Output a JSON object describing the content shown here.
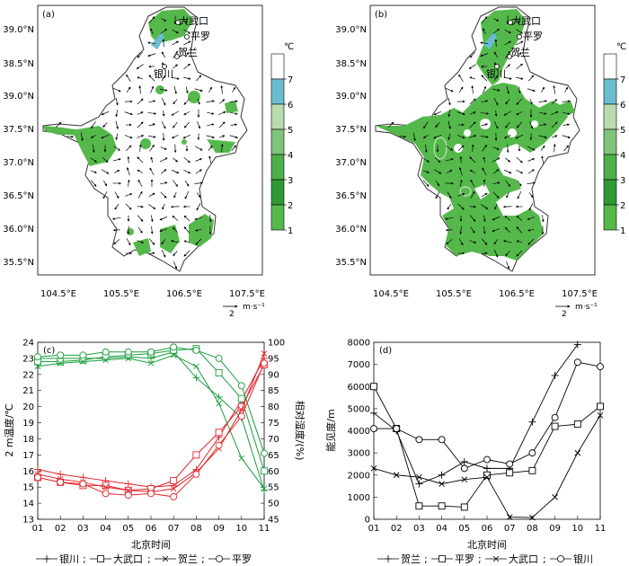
{
  "map_panels": [
    {
      "label": "(a)",
      "lat_ticks": [
        "39.0°N",
        "38.5°N",
        "39.0°N",
        "37.5°N",
        "37.0°N",
        "36.5°N",
        "36.0°N",
        "35.5°N"
      ],
      "lon_ticks": [
        "104.5°E",
        "105.5°E",
        "106.5°E",
        "107.5°E"
      ],
      "cities": [
        "大武口",
        "平罗",
        "贺兰",
        "银川"
      ],
      "colorbar": {
        "unit": "℃",
        "ticks": [
          "7",
          "6",
          "5",
          "4",
          "3",
          "2",
          "1"
        ],
        "colors": [
          "#ffffff",
          "#6bbcd0",
          "#b8dcb0",
          "#7fc47a",
          "#4db04a",
          "#2e9a35",
          "#55b84b"
        ]
      },
      "wind_legend": {
        "value": "2",
        "unit": "m·s⁻¹"
      }
    },
    {
      "label": "(b)",
      "lat_ticks": [
        "39.0°N",
        "38.5°N",
        "39.0°N",
        "37.5°N",
        "37.0°N",
        "36.5°N",
        "36.0°N",
        "35.5°N"
      ],
      "lon_ticks": [
        "104.5°E",
        "105.5°E",
        "106.5°E",
        "107.5°E"
      ],
      "cities": [
        "大武口",
        "平罗",
        "贺兰",
        "银川"
      ],
      "colorbar": {
        "unit": "℃",
        "ticks": [
          "7",
          "6",
          "5",
          "4",
          "3",
          "2",
          "1"
        ],
        "colors": [
          "#ffffff",
          "#6bbcd0",
          "#b8dcb0",
          "#7fc47a",
          "#4db04a",
          "#2e9a35",
          "#55b84b"
        ]
      },
      "wind_legend": {
        "value": "2",
        "unit": "m·s⁻¹"
      }
    }
  ],
  "chart_data": [
    {
      "type": "line",
      "panel_label": "(c)",
      "xlabel": "北京时间",
      "ylabel_left": "2 m温度/℃",
      "ylabel_right": "相对湿度/(%)",
      "x": [
        "01",
        "02",
        "03",
        "04",
        "05",
        "06",
        "07",
        "08",
        "09",
        "10",
        "11"
      ],
      "ylim_left": [
        13,
        24
      ],
      "yticks_left": [
        "13",
        "14",
        "15",
        "16",
        "17",
        "18",
        "19",
        "20",
        "21",
        "22",
        "23",
        "24"
      ],
      "ylim_right": [
        45,
        100
      ],
      "yticks_right": [
        "45",
        "50",
        "55",
        "60",
        "65",
        "70",
        "75",
        "80",
        "85",
        "90",
        "95",
        "100"
      ],
      "temp_color": "#1a9e3c",
      "rh_color": "#e3242b",
      "series": [
        {
          "name": "银川",
          "marker": "plus",
          "temperature": [
            23.0,
            23.0,
            23.0,
            23.0,
            23.1,
            23.0,
            23.4,
            21.8,
            20.6,
            19.3,
            14.8
          ],
          "humidity": [
            60.5,
            59.0,
            58.0,
            57.0,
            56.0,
            55.0,
            55.5,
            60.5,
            70.5,
            82.0,
            95.0
          ]
        },
        {
          "name": "大武口",
          "marker": "square",
          "temperature": [
            22.8,
            22.8,
            22.9,
            23.1,
            23.2,
            23.3,
            23.5,
            23.6,
            22.1,
            20.5,
            16.0
          ],
          "humidity": [
            58.0,
            56.5,
            55.5,
            55.5,
            54.0,
            54.5,
            57.0,
            65.0,
            72.0,
            80.0,
            93.0
          ]
        },
        {
          "name": "贺兰",
          "marker": "cross",
          "temperature": [
            22.5,
            22.7,
            22.8,
            22.9,
            23.0,
            22.7,
            23.2,
            22.5,
            20.2,
            16.8,
            14.9
          ],
          "humidity": [
            59.0,
            57.5,
            56.5,
            55.0,
            54.0,
            53.5,
            54.5,
            59.5,
            67.0,
            79.0,
            96.5
          ]
        },
        {
          "name": "平罗",
          "marker": "circle",
          "temperature": [
            23.1,
            23.2,
            23.2,
            23.4,
            23.4,
            23.4,
            23.7,
            23.5,
            23.0,
            21.3,
            17.1
          ],
          "humidity": [
            58.0,
            56.5,
            56.0,
            53.0,
            52.5,
            53.0,
            52.0,
            59.0,
            68.0,
            77.0,
            93.5
          ]
        }
      ]
    },
    {
      "type": "line",
      "panel_label": "(d)",
      "xlabel": "北京时间",
      "ylabel": "能见度/m",
      "x": [
        "01",
        "02",
        "03",
        "04",
        "05",
        "06",
        "07",
        "08",
        "09",
        "10",
        "11"
      ],
      "ylim": [
        0,
        8000
      ],
      "yticks": [
        "0",
        "1000",
        "2000",
        "3000",
        "4000",
        "5000",
        "6000",
        "7000",
        "8000"
      ],
      "series": [
        {
          "name": "贺兰",
          "marker": "plus",
          "values": [
            4800,
            4000,
            1600,
            2000,
            2600,
            2300,
            2300,
            4400,
            6500,
            7900,
            null
          ]
        },
        {
          "name": "平罗",
          "marker": "square",
          "values": [
            6000,
            4100,
            600,
            600,
            550,
            2000,
            2100,
            2200,
            4200,
            4300,
            5100
          ]
        },
        {
          "name": "大武口",
          "marker": "cross",
          "values": [
            2300,
            2000,
            1900,
            1600,
            1800,
            1900,
            100,
            80,
            1000,
            3000,
            4700
          ]
        },
        {
          "name": "银川",
          "marker": "circle",
          "values": [
            4100,
            4100,
            3600,
            3600,
            2300,
            2700,
            2500,
            3000,
            4600,
            7100,
            6900
          ]
        }
      ]
    }
  ]
}
